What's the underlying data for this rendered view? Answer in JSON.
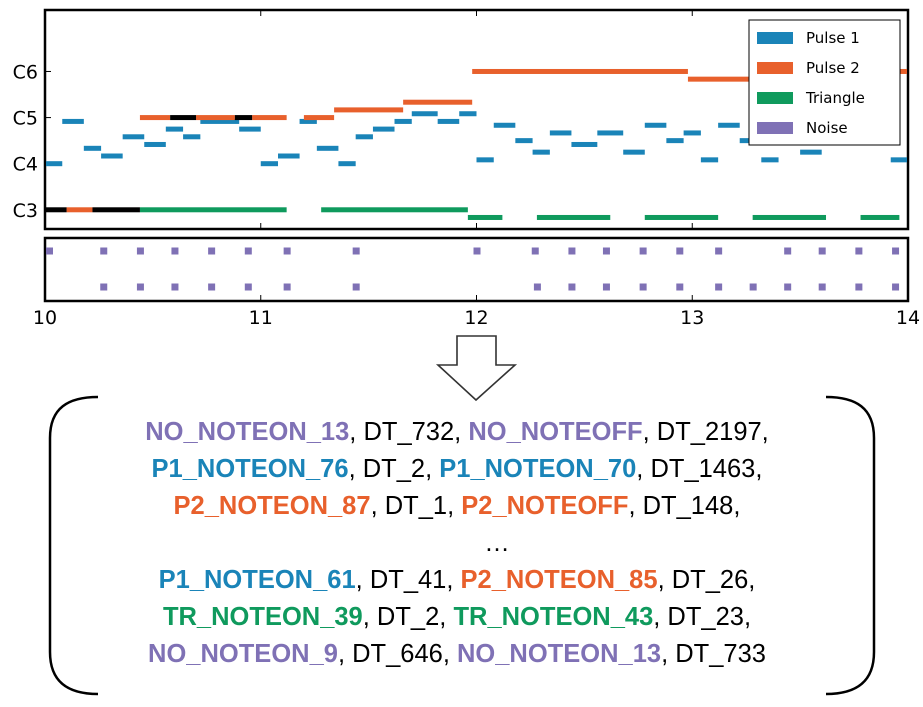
{
  "colors": {
    "pulse1": "#1a84b8",
    "pulse2": "#e8602c",
    "triangle": "#0f9a5d",
    "noise": "#7f71b5",
    "overlap": "#000000"
  },
  "chart_data": {
    "type": "piano-roll",
    "title": "",
    "xlabel": "",
    "ylabel": "",
    "xlim": [
      10,
      14
    ],
    "x_ticks": [
      "10",
      "11",
      "12",
      "13",
      "14"
    ],
    "y_ticks": [
      "C6",
      "C5",
      "C4",
      "C3"
    ],
    "legend": [
      "Pulse 1",
      "Pulse 2",
      "Triangle",
      "Noise"
    ],
    "legend_position": "top-right",
    "pitch_range": [
      31,
      88
    ],
    "series": [
      {
        "key": "pulse1",
        "name": "Pulse 1",
        "notes": [
          [
            9.98,
            10.08,
            48
          ],
          [
            10.08,
            10.18,
            59
          ],
          [
            10.18,
            10.26,
            52
          ],
          [
            10.26,
            10.36,
            50
          ],
          [
            10.36,
            10.46,
            55
          ],
          [
            10.46,
            10.56,
            53
          ],
          [
            10.56,
            10.64,
            57
          ],
          [
            10.64,
            10.72,
            55
          ],
          [
            10.72,
            10.9,
            59
          ],
          [
            10.9,
            11.0,
            57
          ],
          [
            11.0,
            11.08,
            48
          ],
          [
            11.08,
            11.18,
            50
          ],
          [
            11.18,
            11.26,
            59
          ],
          [
            11.26,
            11.36,
            52
          ],
          [
            11.36,
            11.44,
            48
          ],
          [
            11.44,
            11.52,
            55
          ],
          [
            11.52,
            11.62,
            57
          ],
          [
            11.62,
            11.7,
            59
          ],
          [
            11.7,
            11.82,
            61
          ],
          [
            11.82,
            11.92,
            59
          ],
          [
            11.92,
            12.0,
            61
          ],
          [
            12.0,
            12.08,
            49
          ],
          [
            12.08,
            12.18,
            58
          ],
          [
            12.18,
            12.26,
            54
          ],
          [
            12.26,
            12.34,
            51
          ],
          [
            12.34,
            12.44,
            56
          ],
          [
            12.44,
            12.56,
            53
          ],
          [
            12.56,
            12.68,
            56
          ],
          [
            12.68,
            12.78,
            51
          ],
          [
            12.78,
            12.88,
            58
          ],
          [
            12.88,
            12.96,
            54
          ],
          [
            12.96,
            13.04,
            56
          ],
          [
            13.04,
            13.12,
            49
          ],
          [
            13.12,
            13.22,
            58
          ],
          [
            13.22,
            13.32,
            54
          ],
          [
            13.32,
            13.4,
            49
          ],
          [
            13.4,
            13.5,
            56
          ],
          [
            13.5,
            13.6,
            51
          ],
          [
            13.6,
            13.72,
            54
          ],
          [
            13.72,
            13.84,
            58
          ],
          [
            13.84,
            13.92,
            61
          ],
          [
            13.92,
            14.0,
            49
          ]
        ]
      },
      {
        "key": "pulse2",
        "name": "Pulse 2",
        "notes": [
          [
            10.1,
            10.22,
            36
          ],
          [
            10.44,
            10.58,
            60
          ],
          [
            10.7,
            10.88,
            60
          ],
          [
            10.96,
            11.12,
            60
          ],
          [
            11.2,
            11.34,
            60
          ],
          [
            11.34,
            11.66,
            62
          ],
          [
            11.66,
            11.98,
            64
          ],
          [
            11.98,
            12.98,
            72
          ],
          [
            12.98,
            13.52,
            70
          ],
          [
            13.52,
            13.84,
            72
          ],
          [
            13.84,
            14.0,
            72
          ]
        ]
      },
      {
        "key": "triangle",
        "name": "Triangle",
        "notes": [
          [
            10.44,
            11.12,
            36
          ],
          [
            11.28,
            11.96,
            36
          ],
          [
            11.96,
            12.12,
            34
          ],
          [
            12.28,
            12.62,
            34
          ],
          [
            12.78,
            13.12,
            34
          ],
          [
            13.28,
            13.62,
            34
          ],
          [
            13.78,
            13.96,
            34
          ]
        ]
      },
      {
        "key": "overlap",
        "name": "",
        "notes": [
          [
            9.96,
            10.1,
            36
          ],
          [
            10.22,
            10.44,
            36
          ],
          [
            10.58,
            10.7,
            60
          ],
          [
            10.88,
            10.96,
            60
          ]
        ]
      }
    ],
    "noise_hits": [
      [
        9.99,
        1
      ],
      [
        10.27,
        1
      ],
      [
        10.44,
        1
      ],
      [
        10.6,
        1
      ],
      [
        10.77,
        1
      ],
      [
        10.94,
        1
      ],
      [
        11.12,
        1
      ],
      [
        11.44,
        1
      ],
      [
        12.0,
        1
      ],
      [
        12.27,
        1
      ],
      [
        12.44,
        1
      ],
      [
        12.6,
        1
      ],
      [
        12.77,
        1
      ],
      [
        12.94,
        1
      ],
      [
        13.12,
        1
      ],
      [
        13.44,
        1
      ],
      [
        13.6,
        1
      ],
      [
        13.77,
        1
      ],
      [
        13.94,
        1
      ],
      [
        10.27,
        0
      ],
      [
        10.44,
        0
      ],
      [
        10.6,
        0
      ],
      [
        10.77,
        0
      ],
      [
        10.94,
        0
      ],
      [
        11.12,
        0
      ],
      [
        11.44,
        0
      ],
      [
        12.28,
        0
      ],
      [
        12.44,
        0
      ],
      [
        12.6,
        0
      ],
      [
        12.77,
        0
      ],
      [
        12.94,
        0
      ],
      [
        13.12,
        0
      ],
      [
        13.28,
        0
      ],
      [
        13.44,
        0
      ],
      [
        13.6,
        0
      ],
      [
        13.77,
        0
      ],
      [
        13.94,
        0
      ]
    ]
  },
  "tokens": {
    "lines": [
      [
        {
          "text": "NO_NOTEON_13",
          "color": "noise"
        },
        {
          "text": ", DT_732, ",
          "color": ""
        },
        {
          "text": "NO_NOTEOFF",
          "color": "noise"
        },
        {
          "text": ", DT_2197,",
          "color": ""
        }
      ],
      [
        {
          "text": "P1_NOTEON_76",
          "color": "pulse1"
        },
        {
          "text": ", DT_2, ",
          "color": ""
        },
        {
          "text": "P1_NOTEON_70",
          "color": "pulse1"
        },
        {
          "text": ", DT_1463,",
          "color": ""
        }
      ],
      [
        {
          "text": "P2_NOTEON_87",
          "color": "pulse2"
        },
        {
          "text": ", DT_1, ",
          "color": ""
        },
        {
          "text": "P2_NOTEOFF",
          "color": "pulse2"
        },
        {
          "text": ", DT_148,",
          "color": ""
        }
      ],
      [
        {
          "text": "P1_NOTEON_61",
          "color": "pulse1"
        },
        {
          "text": ", DT_41, ",
          "color": ""
        },
        {
          "text": "P2_NOTEON_85",
          "color": "pulse2"
        },
        {
          "text": ", DT_26,",
          "color": ""
        }
      ],
      [
        {
          "text": "TR_NOTEON_39",
          "color": "triangle"
        },
        {
          "text": ", DT_2, ",
          "color": ""
        },
        {
          "text": "TR_NOTEON_43",
          "color": "triangle"
        },
        {
          "text": ", DT_23,",
          "color": ""
        }
      ],
      [
        {
          "text": "NO_NOTEON_9",
          "color": "noise"
        },
        {
          "text": ", DT_646, ",
          "color": ""
        },
        {
          "text": "NO_NOTEON_13",
          "color": "noise"
        },
        {
          "text": ", DT_733",
          "color": ""
        }
      ]
    ],
    "ellipsis": "…",
    "ellipsis_after_line": 3
  }
}
